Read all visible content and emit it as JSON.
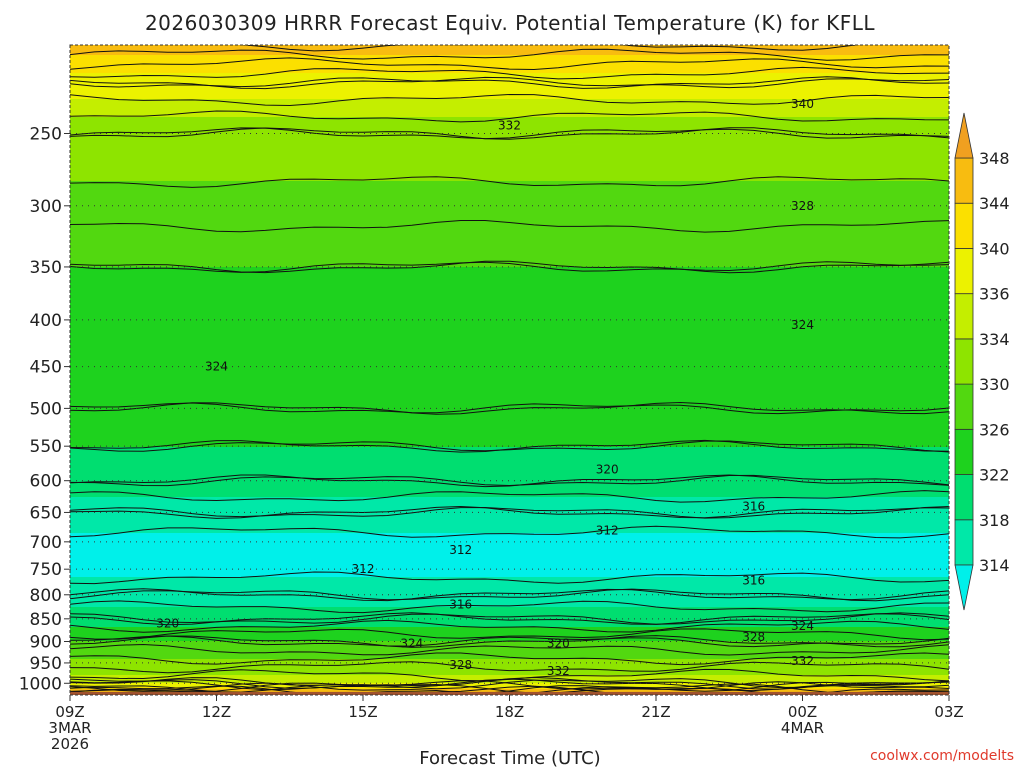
{
  "chart_data": {
    "type": "heatmap",
    "title": "2026030309 HRRR Forecast Equiv. Potential Temperature (K) for KFLL",
    "xlabel": "Forecast Time (UTC)",
    "ylabel": "",
    "credit": "coolwx.com/modelts",
    "x_ticks": [
      {
        "hour": 0,
        "label": "09Z",
        "sub": [
          "3MAR",
          "2026"
        ]
      },
      {
        "hour": 3,
        "label": "12Z",
        "sub": []
      },
      {
        "hour": 6,
        "label": "15Z",
        "sub": []
      },
      {
        "hour": 9,
        "label": "18Z",
        "sub": []
      },
      {
        "hour": 12,
        "label": "21Z",
        "sub": []
      },
      {
        "hour": 15,
        "label": "00Z",
        "sub": [
          "4MAR"
        ]
      },
      {
        "hour": 18,
        "label": "03Z",
        "sub": []
      }
    ],
    "y_axis": {
      "log_scale": true,
      "range_hpa": [
        1030,
        200
      ],
      "reversed": true
    },
    "y_ticks": [
      250,
      300,
      350,
      400,
      450,
      500,
      550,
      600,
      650,
      700,
      750,
      800,
      850,
      900,
      950,
      1000
    ],
    "gridlines": "dotted at pressure ticks",
    "colorbar": {
      "ticks": [
        314,
        318,
        322,
        326,
        330,
        334,
        336,
        340,
        344,
        348
      ],
      "colors": [
        "#00f0ea",
        "#00e8a8",
        "#00de70",
        "#1ed21e",
        "#52d810",
        "#8ee400",
        "#c4ee00",
        "#ecf200",
        "#fbe000",
        "#f8bc10",
        "#f0a020"
      ],
      "extend": "both"
    },
    "profile": [
      {
        "p": 1030,
        "theta_e": 352
      },
      {
        "p": 1000,
        "theta_e": 336
      },
      {
        "p": 950,
        "theta_e": 331
      },
      {
        "p": 900,
        "theta_e": 326
      },
      {
        "p": 850,
        "theta_e": 320
      },
      {
        "p": 800,
        "theta_e": 316
      },
      {
        "p": 750,
        "theta_e": 313
      },
      {
        "p": 700,
        "theta_e": 313
      },
      {
        "p": 650,
        "theta_e": 316
      },
      {
        "p": 600,
        "theta_e": 320
      },
      {
        "p": 550,
        "theta_e": 322
      },
      {
        "p": 500,
        "theta_e": 324
      },
      {
        "p": 450,
        "theta_e": 325
      },
      {
        "p": 400,
        "theta_e": 325
      },
      {
        "p": 350,
        "theta_e": 326
      },
      {
        "p": 300,
        "theta_e": 329
      },
      {
        "p": 250,
        "theta_e": 332
      },
      {
        "p": 220,
        "theta_e": 338
      },
      {
        "p": 200,
        "theta_e": 346
      }
    ],
    "contour_labels": [
      {
        "text": "340",
        "hour": 15.0,
        "p": 232
      },
      {
        "text": "332",
        "hour": 9.0,
        "p": 245
      },
      {
        "text": "328",
        "hour": 15.0,
        "p": 300
      },
      {
        "text": "324",
        "hour": 15.0,
        "p": 405
      },
      {
        "text": "324",
        "hour": 3.0,
        "p": 450
      },
      {
        "text": "320",
        "hour": 11.0,
        "p": 583
      },
      {
        "text": "316",
        "hour": 14.0,
        "p": 640
      },
      {
        "text": "312",
        "hour": 11.0,
        "p": 680
      },
      {
        "text": "312",
        "hour": 8.0,
        "p": 715
      },
      {
        "text": "312",
        "hour": 6.0,
        "p": 750
      },
      {
        "text": "316",
        "hour": 14.0,
        "p": 772
      },
      {
        "text": "316",
        "hour": 8.0,
        "p": 820
      },
      {
        "text": "320",
        "hour": 2.0,
        "p": 860
      },
      {
        "text": "324",
        "hour": 15.0,
        "p": 865
      },
      {
        "text": "328",
        "hour": 14.0,
        "p": 890
      },
      {
        "text": "320",
        "hour": 10.0,
        "p": 905
      },
      {
        "text": "324",
        "hour": 7.0,
        "p": 905
      },
      {
        "text": "332",
        "hour": 15.0,
        "p": 945
      },
      {
        "text": "328",
        "hour": 8.0,
        "p": 955
      },
      {
        "text": "332",
        "hour": 10.0,
        "p": 970
      }
    ],
    "ground_band": {
      "color": "#a0522d"
    }
  }
}
